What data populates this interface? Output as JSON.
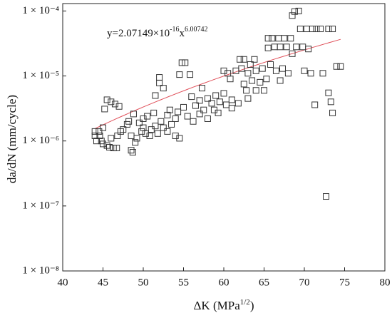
{
  "chart_data": {
    "type": "scatter",
    "y_label": "da/dN (mm/cycle)",
    "x_label_parts": [
      "ΔK (MPa",
      "1/2",
      ")"
    ],
    "equation_parts": [
      "y=2.07149×10",
      "-16",
      "x",
      "6.00742"
    ],
    "fit": {
      "coefficient": 2.07149e-16,
      "exponent": 6.00742,
      "x_range": [
        44,
        74.5
      ],
      "color": "#e0505a"
    },
    "xlim": [
      40,
      80
    ],
    "xticks": [
      40,
      45,
      50,
      55,
      60,
      65,
      70,
      75,
      80
    ],
    "ylim": [
      1e-08,
      0.00013
    ],
    "log_y": true,
    "yticks": [
      {
        "value": 1e-08,
        "label": "1 × 10⁻⁸"
      },
      {
        "value": 1e-07,
        "label": "1 × 10⁻⁷"
      },
      {
        "value": 1e-06,
        "label": "1 × 10⁻⁶"
      },
      {
        "value": 1e-05,
        "label": "1 × 10⁻⁵"
      },
      {
        "value": 0.0001,
        "label": "1 × 10⁻⁴"
      }
    ],
    "color": "#333333",
    "x": [
      44,
      44,
      44.2,
      44.5,
      44.6,
      44.8,
      45,
      45,
      45.2,
      45.5,
      45.5,
      45.8,
      46,
      46,
      46.3,
      46.5,
      46.7,
      46.8,
      47,
      47.2,
      47.5,
      48,
      48.2,
      48.5,
      48.7,
      48.5,
      48.8,
      49,
      49.2,
      49.5,
      49.8,
      50,
      50,
      50.3,
      50.5,
      50.8,
      51,
      51.3,
      51.5,
      51.5,
      51.8,
      52,
      52,
      52.2,
      52.5,
      52.5,
      53,
      53,
      53.3,
      53.5,
      54,
      54,
      54.3,
      54.5,
      54.5,
      54.8,
      55,
      55.2,
      55.5,
      55.8,
      56,
      56.2,
      56.5,
      57,
      57,
      57.3,
      57.5,
      58,
      58,
      58.5,
      58.8,
      59,
      59.3,
      59.5,
      60,
      60,
      60.3,
      60.5,
      60.8,
      61,
      61,
      61.5,
      61.8,
      62,
      62.2,
      62.5,
      62.5,
      62.8,
      63,
      63,
      63.3,
      63.5,
      63.8,
      64,
      64,
      64.5,
      64.8,
      65,
      65.3,
      65.5,
      65.5,
      65.8,
      66,
      66.3,
      66.5,
      66.8,
      67,
      67.3,
      67.5,
      67.8,
      68,
      68.3,
      68.5,
      68.8,
      69,
      69.3,
      69.5,
      69.8,
      70,
      70.3,
      70.5,
      70.8,
      71,
      71.3,
      71.5,
      72,
      72.3,
      72.7,
      73,
      73,
      73.3,
      73.5,
      73.5,
      74,
      74.5,
      68.5,
      67
    ],
    "values": [
      1.4e-06,
      1.2e-06,
      1e-06,
      1.4e-06,
      1.2e-06,
      1e-06,
      9e-07,
      1.6e-06,
      3.1e-06,
      8.5e-07,
      4.3e-06,
      8e-07,
      1.1e-06,
      4e-06,
      7.8e-07,
      3.7e-06,
      7.8e-07,
      1.2e-06,
      3.4e-06,
      1.4e-06,
      1.5e-06,
      1.8e-06,
      2e-06,
      7.2e-07,
      6.7e-07,
      1.2e-06,
      2.6e-06,
      9.5e-07,
      1.1e-06,
      1.9e-06,
      1.4e-06,
      2.2e-06,
      1.6e-06,
      1.3e-06,
      2.4e-06,
      1.2e-06,
      1.5e-06,
      2.7e-06,
      5e-06,
      1.7e-06,
      1.3e-06,
      9.5e-06,
      7.8e-06,
      2e-06,
      6.5e-06,
      1.6e-06,
      2.5e-06,
      1.4e-06,
      3e-06,
      1.8e-06,
      2.2e-06,
      1.2e-06,
      2.8e-06,
      1.1e-06,
      1.05e-05,
      1.6e-05,
      3.3e-06,
      1.6e-05,
      2.4e-06,
      1.05e-05,
      4.8e-06,
      2e-06,
      3.5e-06,
      4.2e-06,
      2.6e-06,
      6.5e-06,
      3e-06,
      4.5e-06,
      2.2e-06,
      3.8e-06,
      3e-06,
      5e-06,
      2.7e-06,
      4e-06,
      5.4e-06,
      1.2e-05,
      3.6e-06,
      1.1e-05,
      9e-06,
      4.3e-06,
      3.2e-06,
      1.2e-05,
      3.8e-06,
      1.8e-05,
      1.3e-05,
      1.8e-05,
      7.5e-06,
      6e-06,
      1.1e-05,
      4.5e-06,
      1.5e-05,
      8.5e-06,
      1.8e-05,
      1.2e-05,
      6e-06,
      8e-06,
      1.3e-05,
      6e-06,
      9e-06,
      2.7e-05,
      3.8e-05,
      1.5e-05,
      3.8e-05,
      2.8e-05,
      1.2e-05,
      3.8e-05,
      2.8e-05,
      1.3e-05,
      3.8e-05,
      2.8e-05,
      1.1e-05,
      3.8e-05,
      8.5e-05,
      9.8e-05,
      2.8e-05,
      0.0001,
      5.3e-05,
      2.8e-05,
      1.2e-05,
      5.3e-05,
      2.6e-05,
      1.1e-05,
      5.3e-05,
      3.6e-06,
      5.3e-05,
      5.3e-05,
      1.1e-05,
      1.4e-07,
      5.3e-05,
      5.5e-06,
      4e-06,
      2.7e-06,
      5.3e-05,
      1.4e-05,
      1.4e-05,
      2.2e-05,
      8.5e-06
    ]
  }
}
